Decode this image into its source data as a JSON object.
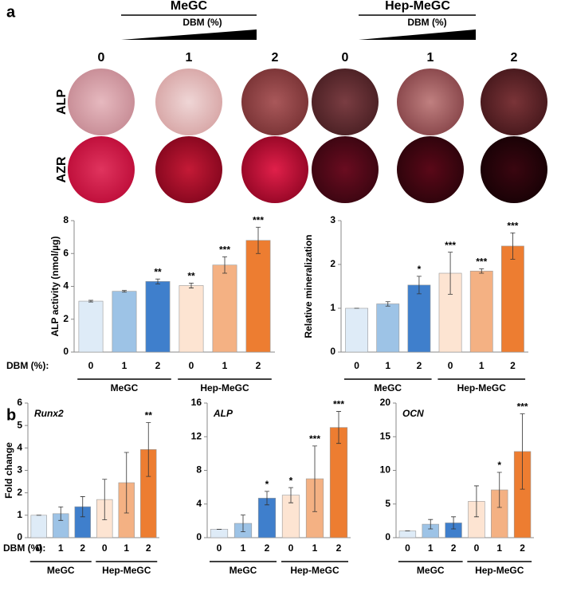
{
  "panel_labels": [
    "a",
    "b"
  ],
  "images": {
    "groups": [
      {
        "name": "MeGC",
        "variable": "DBM (%)",
        "levels": [
          "0",
          "1",
          "2"
        ]
      },
      {
        "name": "Hep-MeGC",
        "variable": "DBM (%)",
        "levels": [
          "0",
          "1",
          "2"
        ]
      }
    ],
    "rows": [
      "ALP",
      "AZR"
    ]
  },
  "chart_data": [
    {
      "type": "bar",
      "ylabel": "ALP activity (nmol/µg)",
      "xlabel": "DBM (%):",
      "categories": [
        "0",
        "1",
        "2",
        "0",
        "1",
        "2"
      ],
      "groups": [
        "MeGC",
        "Hep-MeGC"
      ],
      "values": [
        3.1,
        3.7,
        4.3,
        4.05,
        5.3,
        6.8
      ],
      "errors": [
        0.05,
        0.05,
        0.15,
        0.15,
        0.5,
        0.8
      ],
      "annotations": [
        null,
        null,
        "**",
        "**",
        "***",
        "***"
      ],
      "colors": [
        "#deebf7",
        "#9dc3e6",
        "#3f7fcc",
        "#fde4d2",
        "#f4b183",
        "#ed7d31"
      ],
      "ylim": [
        0,
        8
      ],
      "yticks": [
        0,
        2,
        4,
        6,
        8
      ]
    },
    {
      "type": "bar",
      "ylabel": "Relative mineralization",
      "categories": [
        "0",
        "1",
        "2",
        "0",
        "1",
        "2"
      ],
      "groups": [
        "MeGC",
        "Hep-MeGC"
      ],
      "values": [
        1.0,
        1.1,
        1.53,
        1.8,
        1.85,
        2.42
      ],
      "errors": [
        0,
        0.05,
        0.2,
        0.48,
        0.05,
        0.3
      ],
      "annotations": [
        null,
        null,
        "*",
        "***",
        "***",
        "***"
      ],
      "colors": [
        "#deebf7",
        "#9dc3e6",
        "#3f7fcc",
        "#fde4d2",
        "#f4b183",
        "#ed7d31"
      ],
      "ylim": [
        0,
        3
      ],
      "yticks": [
        0,
        1,
        2,
        3
      ]
    },
    {
      "type": "bar",
      "title": "Runx2",
      "ylabel": "Fold change",
      "xlabel": "DBM (%):",
      "categories": [
        "0",
        "1",
        "2",
        "0",
        "1",
        "2"
      ],
      "groups": [
        "MeGC",
        "Hep-MeGC"
      ],
      "values": [
        1.0,
        1.07,
        1.38,
        1.7,
        2.45,
        3.93
      ],
      "errors": [
        0,
        0.3,
        0.45,
        0.9,
        1.35,
        1.2
      ],
      "annotations": [
        null,
        null,
        null,
        null,
        null,
        "**"
      ],
      "colors": [
        "#deebf7",
        "#9dc3e6",
        "#3f7fcc",
        "#fde4d2",
        "#f4b183",
        "#ed7d31"
      ],
      "ylim": [
        0,
        6
      ],
      "yticks": [
        0,
        1,
        2,
        3,
        4,
        5,
        6
      ]
    },
    {
      "type": "bar",
      "title": "ALP",
      "categories": [
        "0",
        "1",
        "2",
        "0",
        "1",
        "2"
      ],
      "groups": [
        "MeGC",
        "Hep-MeGC"
      ],
      "values": [
        1.0,
        1.7,
        4.7,
        5.05,
        7.0,
        13.1
      ],
      "errors": [
        0,
        1.0,
        0.8,
        0.9,
        3.9,
        1.9
      ],
      "annotations": [
        null,
        null,
        "*",
        "*",
        "***",
        "***"
      ],
      "colors": [
        "#deebf7",
        "#9dc3e6",
        "#3f7fcc",
        "#fde4d2",
        "#f4b183",
        "#ed7d31"
      ],
      "ylim": [
        0,
        16
      ],
      "yticks": [
        0,
        4,
        8,
        12,
        16
      ]
    },
    {
      "type": "bar",
      "title": "OCN",
      "categories": [
        "0",
        "1",
        "2",
        "0",
        "1",
        "2"
      ],
      "groups": [
        "MeGC",
        "Hep-MeGC"
      ],
      "values": [
        1.0,
        2.0,
        2.2,
        5.4,
        7.1,
        12.8
      ],
      "errors": [
        0,
        0.7,
        0.9,
        2.3,
        2.6,
        5.6
      ],
      "annotations": [
        null,
        null,
        null,
        null,
        "*",
        "***"
      ],
      "colors": [
        "#deebf7",
        "#9dc3e6",
        "#3f7fcc",
        "#fde4d2",
        "#f4b183",
        "#ed7d31"
      ],
      "ylim": [
        0,
        20
      ],
      "yticks": [
        0,
        5,
        10,
        15,
        20
      ]
    }
  ]
}
